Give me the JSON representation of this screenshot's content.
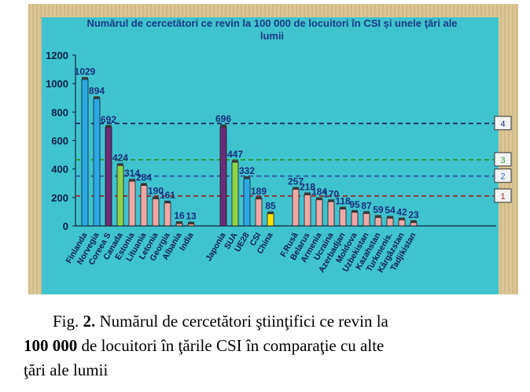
{
  "chart_data": {
    "type": "bar",
    "title": "Numărul de cercetători ce revin la 100 000 de locuitori în CSI și unele ţări ale lumii",
    "ylim": [
      0,
      1200
    ],
    "yticks": [
      0,
      200,
      400,
      600,
      800,
      1000,
      1200
    ],
    "grid": false,
    "categories": [
      "Finlanda",
      "Norvegia",
      "Coreea S",
      "Canada",
      "Estonia",
      "Lituania",
      "Letonia",
      "Georgia",
      "Albania",
      "India",
      "Japonia",
      "SUA",
      "UE28",
      "CSI",
      "China",
      "F.Rusă",
      "Belarus",
      "Armenia",
      "Ucraina",
      "Azerbadjan",
      "Moldova",
      "Uzbekistan",
      "Kazahstan",
      "Turkmenis.",
      "Kârgâzstan",
      "Tadjikistan"
    ],
    "values": [
      1029,
      894,
      692,
      424,
      314,
      284,
      190,
      161,
      16,
      13,
      696,
      447,
      332,
      189,
      85,
      257,
      218,
      184,
      170,
      118,
      95,
      87,
      59,
      54,
      42,
      23
    ],
    "colors": [
      "#29a9e6",
      "#29a9e6",
      "#6a2d7a",
      "#8ed44a",
      "#f0a8a6",
      "#f0a8a6",
      "#f0a8a6",
      "#f0a8a6",
      "#f0a8a6",
      "#f0a8a6",
      "#6a2d7a",
      "#8ed44a",
      "#29a9e6",
      "#f0a8a6",
      "#ffe400",
      "#f0a8a6",
      "#f0a8a6",
      "#f0a8a6",
      "#f0a8a6",
      "#f0a8a6",
      "#f0a8a6",
      "#f0a8a6",
      "#f0a8a6",
      "#f0a8a6",
      "#f0a8a6",
      "#f0a8a6"
    ],
    "reference_lines": [
      {
        "label": "4",
        "value": 720,
        "color": "#1f2d6e"
      },
      {
        "label": "3",
        "value": 465,
        "color": "#2f9a3a"
      },
      {
        "label": "2",
        "value": 350,
        "color": "#2f5fa8"
      },
      {
        "label": "1",
        "value": 210,
        "color": "#a3262a"
      }
    ]
  },
  "caption": {
    "prefix": "Fig. ",
    "number": "2.",
    "line1_rest": " Numărul de cercetători ştiinţifici ce revin la",
    "line2_bold": "100 000",
    "line2_rest": " de locuitori în ţările CSI în comparaţie cu alte",
    "line3": "ţări ale lumii"
  }
}
